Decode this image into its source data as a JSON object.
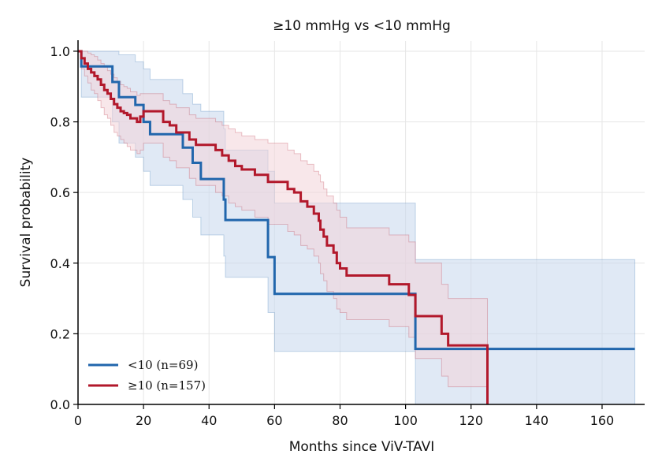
{
  "chart_data": {
    "type": "line",
    "title": "≥10 mmHg vs <10 mmHg",
    "xlabel": "Months since ViV-TAVI",
    "ylabel": "Survival probability",
    "xlim": [
      0,
      173
    ],
    "ylim": [
      0,
      1.02
    ],
    "xticks": [
      0,
      20,
      40,
      60,
      80,
      100,
      120,
      140,
      160
    ],
    "yticks": [
      0.0,
      0.2,
      0.4,
      0.6,
      0.8,
      1.0
    ],
    "xtick_labels": [
      "0",
      "20",
      "40",
      "60",
      "80",
      "100",
      "120",
      "140",
      "160"
    ],
    "ytick_labels": [
      "0.0",
      "0.2",
      "0.4",
      "0.6",
      "0.8",
      "1.0"
    ],
    "grid": true,
    "legend_position": "lower-left",
    "step": true,
    "series": [
      {
        "name": "<10 (n=69)",
        "color": "#2166ac",
        "ci_color": "#c6d7ec",
        "x": [
          0,
          1,
          8.5,
          10.5,
          12.5,
          17.5,
          20,
          22,
          32,
          35,
          37.5,
          44.5,
          45,
          58,
          60,
          102.5,
          103,
          170
        ],
        "y": [
          1.0,
          0.957,
          0.957,
          0.913,
          0.87,
          0.848,
          0.8,
          0.765,
          0.727,
          0.684,
          0.638,
          0.58,
          0.522,
          0.417,
          0.313,
          0.313,
          0.157,
          0.157
        ],
        "ci_upper": [
          1.0,
          1.0,
          1.0,
          1.0,
          0.99,
          0.97,
          0.95,
          0.92,
          0.88,
          0.85,
          0.83,
          0.78,
          0.72,
          0.66,
          0.57,
          0.57,
          0.41,
          0.41
        ],
        "ci_lower": [
          1.0,
          0.87,
          0.87,
          0.8,
          0.74,
          0.7,
          0.66,
          0.62,
          0.58,
          0.53,
          0.48,
          0.42,
          0.36,
          0.26,
          0.15,
          0.15,
          0.0,
          0.0
        ]
      },
      {
        "name": "≥10 (n=157)",
        "color": "#b2182b",
        "ci_color": "#f2d4d8",
        "x": [
          0,
          1,
          2,
          3,
          4,
          5,
          6,
          7,
          8,
          9,
          10,
          11,
          12,
          13,
          14,
          15,
          16,
          18,
          19,
          20,
          22,
          26,
          28,
          30,
          32,
          34,
          36,
          38,
          42,
          44,
          46,
          48,
          50,
          54,
          58,
          60,
          64,
          66,
          68,
          70,
          72,
          73.5,
          74,
          75,
          76,
          78,
          79,
          80,
          82,
          95,
          101,
          103,
          107,
          111,
          113,
          117,
          124,
          125
        ],
        "y": [
          1.0,
          0.98,
          0.965,
          0.95,
          0.94,
          0.93,
          0.92,
          0.905,
          0.89,
          0.88,
          0.865,
          0.85,
          0.84,
          0.83,
          0.825,
          0.82,
          0.81,
          0.8,
          0.815,
          0.83,
          0.83,
          0.8,
          0.79,
          0.77,
          0.77,
          0.75,
          0.735,
          0.735,
          0.72,
          0.705,
          0.69,
          0.675,
          0.665,
          0.65,
          0.63,
          0.63,
          0.61,
          0.6,
          0.575,
          0.56,
          0.54,
          0.52,
          0.495,
          0.475,
          0.45,
          0.43,
          0.4,
          0.385,
          0.365,
          0.34,
          0.31,
          0.25,
          0.25,
          0.2,
          0.167,
          0.167,
          0.167,
          0.0
        ],
        "ci_upper": [
          1.0,
          1.0,
          1.0,
          0.995,
          0.99,
          0.985,
          0.975,
          0.965,
          0.955,
          0.945,
          0.935,
          0.925,
          0.915,
          0.905,
          0.9,
          0.895,
          0.885,
          0.875,
          0.88,
          0.88,
          0.88,
          0.86,
          0.85,
          0.84,
          0.84,
          0.82,
          0.81,
          0.81,
          0.8,
          0.79,
          0.78,
          0.77,
          0.76,
          0.75,
          0.74,
          0.74,
          0.72,
          0.71,
          0.69,
          0.68,
          0.66,
          0.65,
          0.63,
          0.61,
          0.59,
          0.57,
          0.55,
          0.53,
          0.5,
          0.48,
          0.46,
          0.4,
          0.4,
          0.34,
          0.3,
          0.3,
          0.3,
          0.3
        ],
        "ci_lower": [
          1.0,
          0.95,
          0.93,
          0.91,
          0.89,
          0.88,
          0.86,
          0.84,
          0.82,
          0.81,
          0.79,
          0.77,
          0.76,
          0.75,
          0.74,
          0.73,
          0.72,
          0.71,
          0.72,
          0.74,
          0.74,
          0.7,
          0.69,
          0.67,
          0.67,
          0.64,
          0.62,
          0.62,
          0.6,
          0.59,
          0.57,
          0.56,
          0.55,
          0.53,
          0.51,
          0.51,
          0.49,
          0.48,
          0.45,
          0.44,
          0.42,
          0.4,
          0.37,
          0.35,
          0.32,
          0.3,
          0.27,
          0.26,
          0.24,
          0.22,
          0.19,
          0.13,
          0.13,
          0.08,
          0.05,
          0.05,
          0.05,
          0.0
        ]
      }
    ]
  }
}
